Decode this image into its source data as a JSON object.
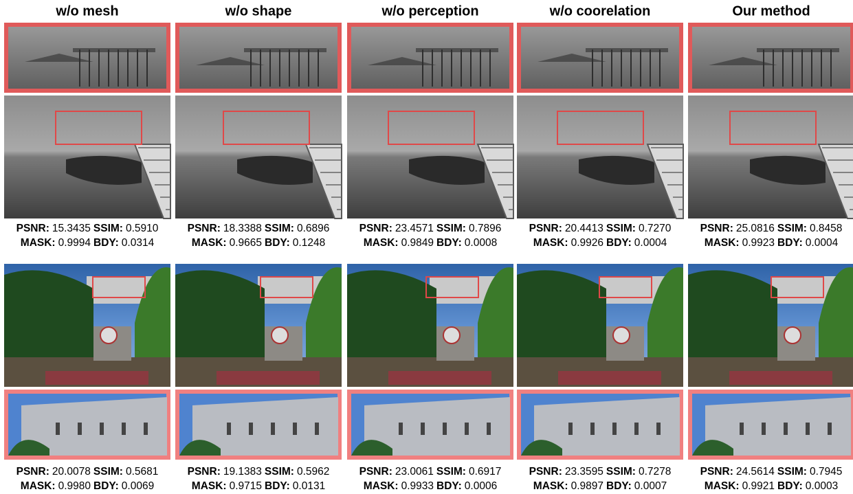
{
  "metric_labels": [
    "PSNR:",
    "SSIM:",
    "MASK:",
    "BDY:"
  ],
  "columns": [
    {
      "title": "w/o mesh",
      "scenes": [
        {
          "metrics": [
            "15.3435",
            "0.5910",
            "0.9994",
            "0.0314"
          ]
        },
        {
          "metrics": [
            "20.0078",
            "0.5681",
            "0.9980",
            "0.0069"
          ]
        }
      ]
    },
    {
      "title": "w/o shape",
      "scenes": [
        {
          "metrics": [
            "18.3388",
            "0.6896",
            "0.9665",
            "0.1248"
          ]
        },
        {
          "metrics": [
            "19.1383",
            "0.5962",
            "0.9715",
            "0.0131"
          ]
        }
      ]
    },
    {
      "title": "w/o perception",
      "scenes": [
        {
          "metrics": [
            "23.4571",
            "0.7896",
            "0.9849",
            "0.0008"
          ]
        },
        {
          "metrics": [
            "23.0061",
            "0.6917",
            "0.9933",
            "0.0006"
          ]
        }
      ]
    },
    {
      "title": "w/o coorelation",
      "scenes": [
        {
          "metrics": [
            "20.4413",
            "0.7270",
            "0.9926",
            "0.0004"
          ]
        },
        {
          "metrics": [
            "23.3595",
            "0.7278",
            "0.9897",
            "0.0007"
          ]
        }
      ]
    },
    {
      "title": "Our method",
      "scenes": [
        {
          "metrics": [
            "25.0816",
            "0.8458",
            "0.9923",
            "0.0004"
          ]
        },
        {
          "metrics": [
            "24.5614",
            "0.7945",
            "0.9921",
            "0.0003"
          ]
        }
      ]
    }
  ]
}
